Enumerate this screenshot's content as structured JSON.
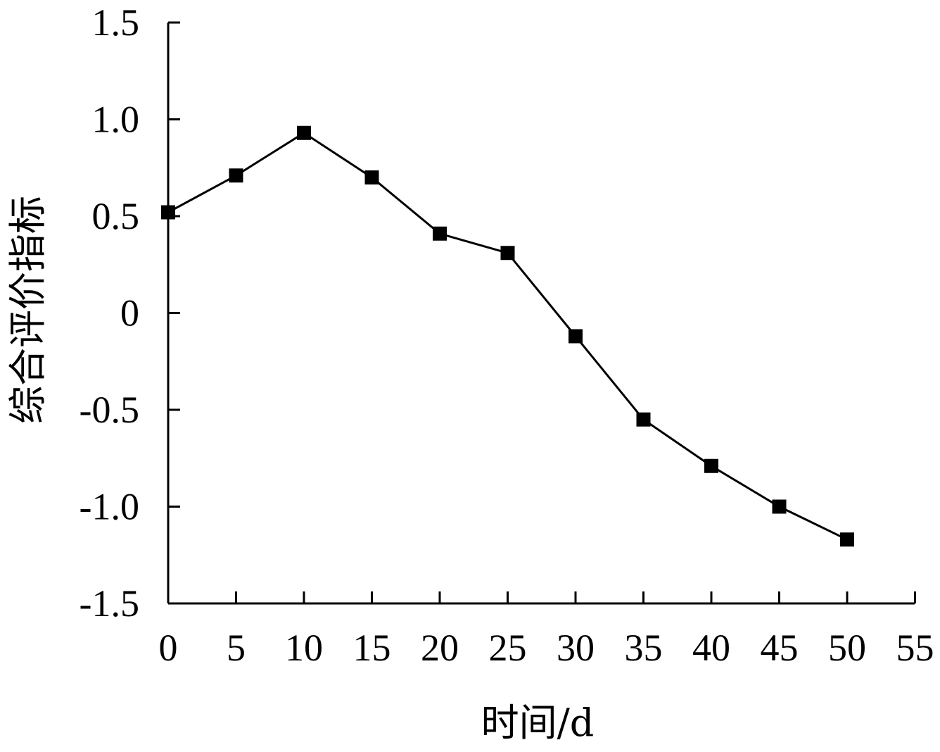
{
  "chart_data": {
    "type": "line",
    "title": "",
    "xlabel": "时间/d",
    "ylabel": "综合评价指标",
    "xlim": [
      0,
      55
    ],
    "ylim": [
      -1.5,
      1.5
    ],
    "x_ticks": [
      "0",
      "5",
      "10",
      "15",
      "20",
      "25",
      "30",
      "35",
      "40",
      "45",
      "50",
      "55"
    ],
    "x_tick_values": [
      0,
      5,
      10,
      15,
      20,
      25,
      30,
      35,
      40,
      45,
      50,
      55
    ],
    "y_ticks": [
      "1.5",
      "1.0",
      "0.5",
      "0",
      "-0.5",
      "-1.0",
      "-1.5"
    ],
    "y_tick_values": [
      1.5,
      1.0,
      0.5,
      0,
      -0.5,
      -1.0,
      -1.5
    ],
    "grid": false,
    "legend": "none",
    "series": [
      {
        "color": "#000000",
        "marker": "square",
        "x": [
          0,
          5,
          10,
          15,
          20,
          25,
          30,
          35,
          40,
          45,
          50
        ],
        "values": [
          0.52,
          0.71,
          0.93,
          0.7,
          0.41,
          0.31,
          -0.12,
          -0.55,
          -0.79,
          -1.0,
          -1.17
        ]
      }
    ]
  }
}
